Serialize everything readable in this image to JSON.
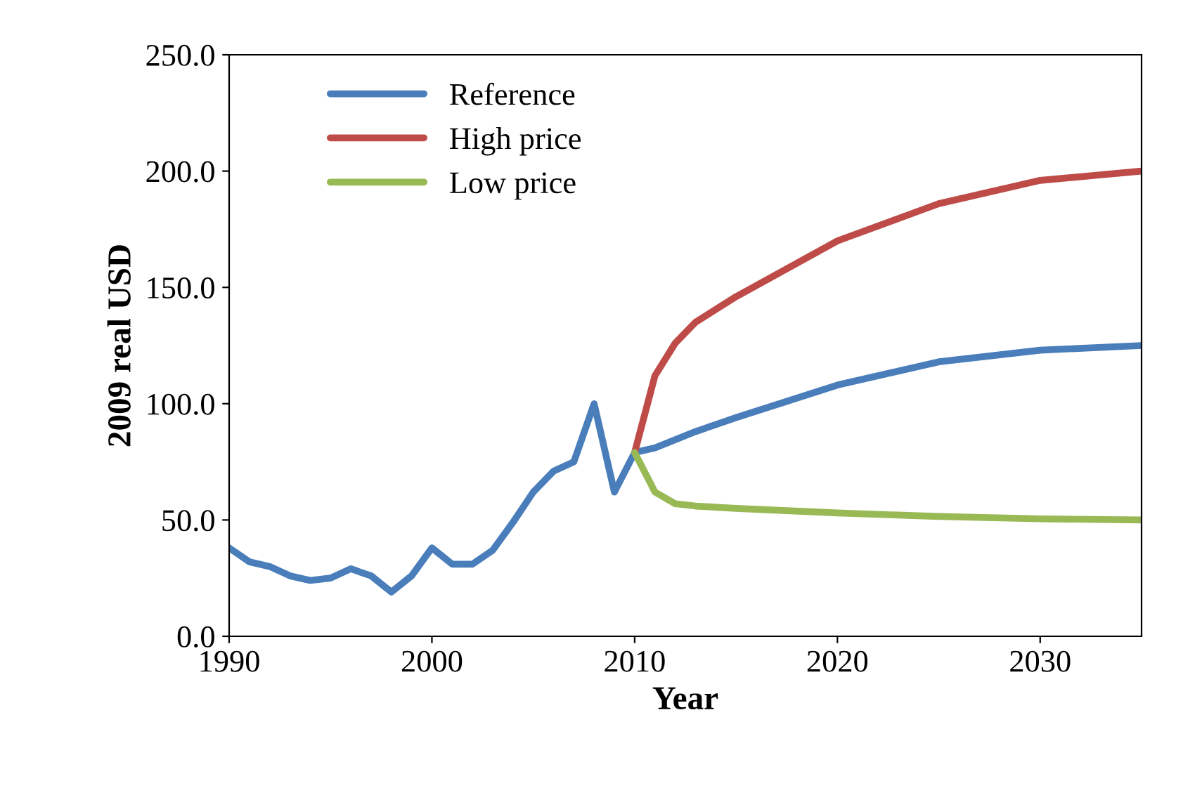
{
  "chart_data": {
    "type": "line",
    "xlabel": "Year",
    "ylabel": "2009 real USD",
    "series": [
      {
        "name": "Reference",
        "color": "#4a7ebb",
        "x": [
          1990,
          1991,
          1992,
          1993,
          1994,
          1995,
          1996,
          1997,
          1998,
          1999,
          2000,
          2001,
          2002,
          2003,
          2004,
          2005,
          2006,
          2007,
          2008,
          2009,
          2010,
          2011,
          2013,
          2015,
          2020,
          2025,
          2030,
          2035
        ],
        "values": [
          38,
          32,
          30,
          26,
          24,
          25,
          29,
          26,
          19,
          26,
          38,
          31,
          31,
          37,
          49,
          62,
          71,
          75,
          100,
          62,
          79,
          81,
          88,
          94,
          108,
          118,
          123,
          125
        ]
      },
      {
        "name": "High price",
        "color": "#be4b48",
        "x": [
          2010,
          2011,
          2012,
          2013,
          2015,
          2020,
          2025,
          2030,
          2035
        ],
        "values": [
          79,
          112,
          126,
          135,
          146,
          170,
          186,
          196,
          200
        ]
      },
      {
        "name": "Low price",
        "color": "#98b954",
        "x": [
          2010,
          2011,
          2012,
          2013,
          2015,
          2020,
          2025,
          2030,
          2035
        ],
        "values": [
          79,
          62,
          57,
          56,
          55,
          53,
          51.5,
          50.5,
          50
        ]
      }
    ],
    "xlim": [
      1990,
      2035
    ],
    "xticks": [
      1990,
      2000,
      2010,
      2020,
      2030
    ],
    "ylim": [
      0,
      250
    ],
    "yticks": [
      {
        "value": 0,
        "label": "0.0"
      },
      {
        "value": 50,
        "label": "50.0"
      },
      {
        "value": 100,
        "label": "100.0"
      },
      {
        "value": 150,
        "label": "150.0"
      },
      {
        "value": 200,
        "label": "200.0"
      },
      {
        "value": 250,
        "label": "250.0"
      }
    ],
    "grid": false,
    "legend": "top left",
    "marker": "none",
    "line_style": "solid"
  }
}
